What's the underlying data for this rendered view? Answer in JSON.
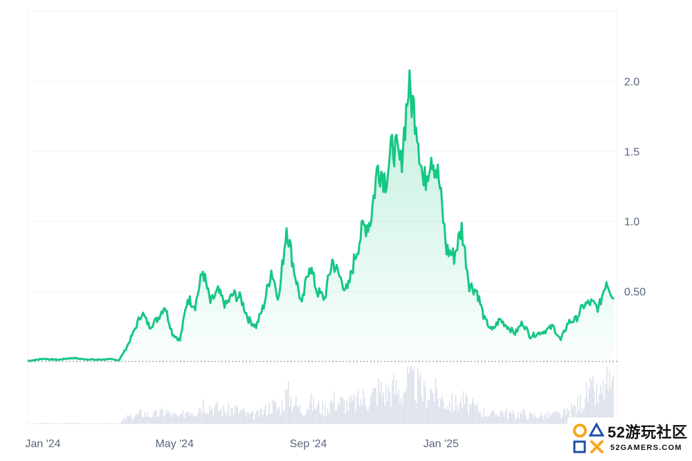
{
  "chart_data": {
    "type": "area",
    "title": "",
    "xlabel": "",
    "ylabel": "",
    "x_ticks": [
      "Jan '24",
      "May '24",
      "Sep '24",
      "Jan '25"
    ],
    "y_ticks": [
      "0.50",
      "1.0",
      "1.5",
      "2.0"
    ],
    "ylim": [
      0,
      2.5
    ],
    "grid": true,
    "baseline_value": 0,
    "colors": {
      "line": "#16c784",
      "volume": "#d7dde8",
      "grid": "#eff2f5",
      "axis_text": "#58667e"
    },
    "series": [
      {
        "x": [
          "2023-12-18",
          "2023-12-25",
          "2024-01-01",
          "2024-01-08",
          "2024-01-15",
          "2024-01-22",
          "2024-01-29",
          "2024-02-05",
          "2024-02-12",
          "2024-02-19",
          "2024-02-26",
          "2024-03-04",
          "2024-03-11",
          "2024-03-18",
          "2024-03-25",
          "2024-04-01",
          "2024-04-08",
          "2024-04-15",
          "2024-04-22",
          "2024-04-29",
          "2024-05-06",
          "2024-05-13",
          "2024-05-20",
          "2024-05-27",
          "2024-06-03",
          "2024-06-10",
          "2024-06-17",
          "2024-06-24",
          "2024-07-01",
          "2024-07-08",
          "2024-07-15",
          "2024-07-22",
          "2024-07-29",
          "2024-08-05",
          "2024-08-12",
          "2024-08-19",
          "2024-08-26",
          "2024-09-02",
          "2024-09-09",
          "2024-09-16",
          "2024-09-23",
          "2024-09-30",
          "2024-10-07",
          "2024-10-14",
          "2024-10-21",
          "2024-10-28",
          "2024-11-04",
          "2024-11-11",
          "2024-11-18",
          "2024-11-25",
          "2024-12-02",
          "2024-12-09",
          "2024-12-16",
          "2024-12-23",
          "2024-12-30",
          "2025-01-06",
          "2025-01-13",
          "2025-01-20",
          "2025-01-27",
          "2025-02-03",
          "2025-02-10",
          "2025-02-17",
          "2025-02-24",
          "2025-03-03",
          "2025-03-10",
          "2025-03-17",
          "2025-03-24",
          "2025-03-31",
          "2025-04-07",
          "2025-04-14",
          "2025-04-21",
          "2025-04-28",
          "2025-05-05",
          "2025-05-12",
          "2025-05-19",
          "2025-05-26",
          "2025-06-02",
          "2025-06-09"
        ],
        "y": [
          0.005,
          0.01,
          0.02,
          0.015,
          0.012,
          0.02,
          0.025,
          0.018,
          0.015,
          0.012,
          0.015,
          0.015,
          0.01,
          0.1,
          0.22,
          0.35,
          0.25,
          0.3,
          0.4,
          0.2,
          0.15,
          0.45,
          0.4,
          0.65,
          0.42,
          0.5,
          0.4,
          0.48,
          0.45,
          0.3,
          0.25,
          0.4,
          0.65,
          0.45,
          0.97,
          0.65,
          0.4,
          0.7,
          0.5,
          0.45,
          0.72,
          0.6,
          0.5,
          0.75,
          0.95,
          1.0,
          1.4,
          1.3,
          1.55,
          1.4,
          1.95,
          1.75,
          1.25,
          1.5,
          1.3,
          0.8,
          0.75,
          0.95,
          0.55,
          0.5,
          0.3,
          0.22,
          0.3,
          0.25,
          0.2,
          0.28,
          0.18,
          0.2,
          0.22,
          0.25,
          0.15,
          0.28,
          0.3,
          0.4,
          0.42,
          0.38,
          0.58,
          0.45
        ]
      }
    ],
    "volume": [
      0.005,
      0.004,
      0.02,
      0.01,
      0.006,
      0.02,
      0.02,
      0.01,
      0.008,
      0.006,
      0.01,
      0.01,
      0.006,
      0.15,
      0.18,
      0.25,
      0.2,
      0.22,
      0.3,
      0.2,
      0.15,
      0.35,
      0.3,
      0.5,
      0.4,
      0.35,
      0.3,
      0.35,
      0.3,
      0.2,
      0.2,
      0.3,
      0.45,
      0.35,
      0.7,
      0.5,
      0.3,
      0.5,
      0.4,
      0.35,
      0.55,
      0.5,
      0.45,
      0.5,
      0.6,
      0.6,
      0.8,
      0.7,
      0.85,
      0.7,
      1.0,
      0.9,
      0.7,
      0.8,
      0.6,
      0.5,
      0.45,
      0.55,
      0.4,
      0.35,
      0.25,
      0.2,
      0.3,
      0.25,
      0.2,
      0.25,
      0.18,
      0.2,
      0.18,
      0.22,
      0.2,
      0.28,
      0.4,
      0.6,
      0.75,
      0.6,
      0.95,
      0.7
    ]
  },
  "watermark": {
    "title": "52游玩社区",
    "subtitle": "52GAMERS.COM"
  }
}
